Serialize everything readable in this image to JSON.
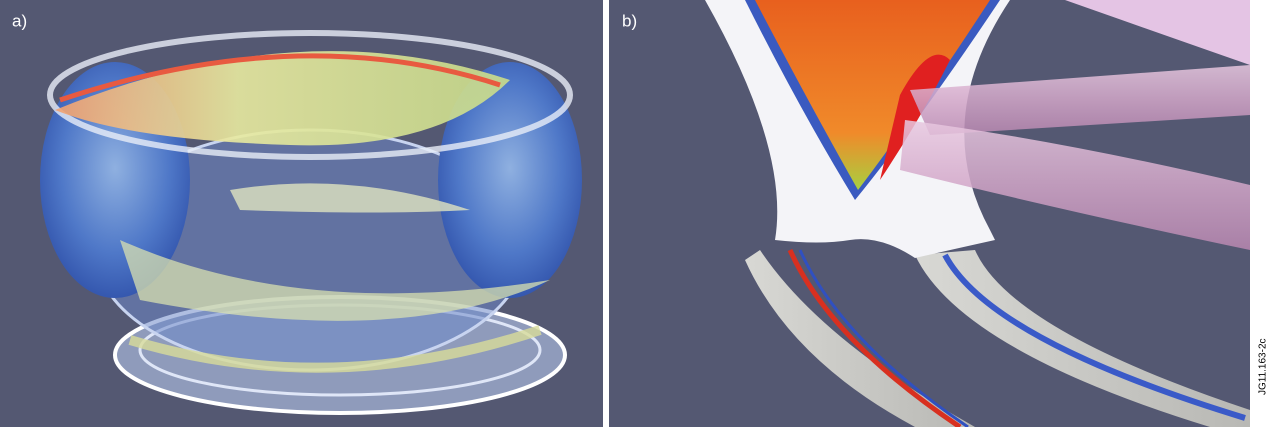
{
  "panels": [
    {
      "label": "a)"
    },
    {
      "label": "b)"
    }
  ],
  "figure_id": "JG11.163-2c"
}
